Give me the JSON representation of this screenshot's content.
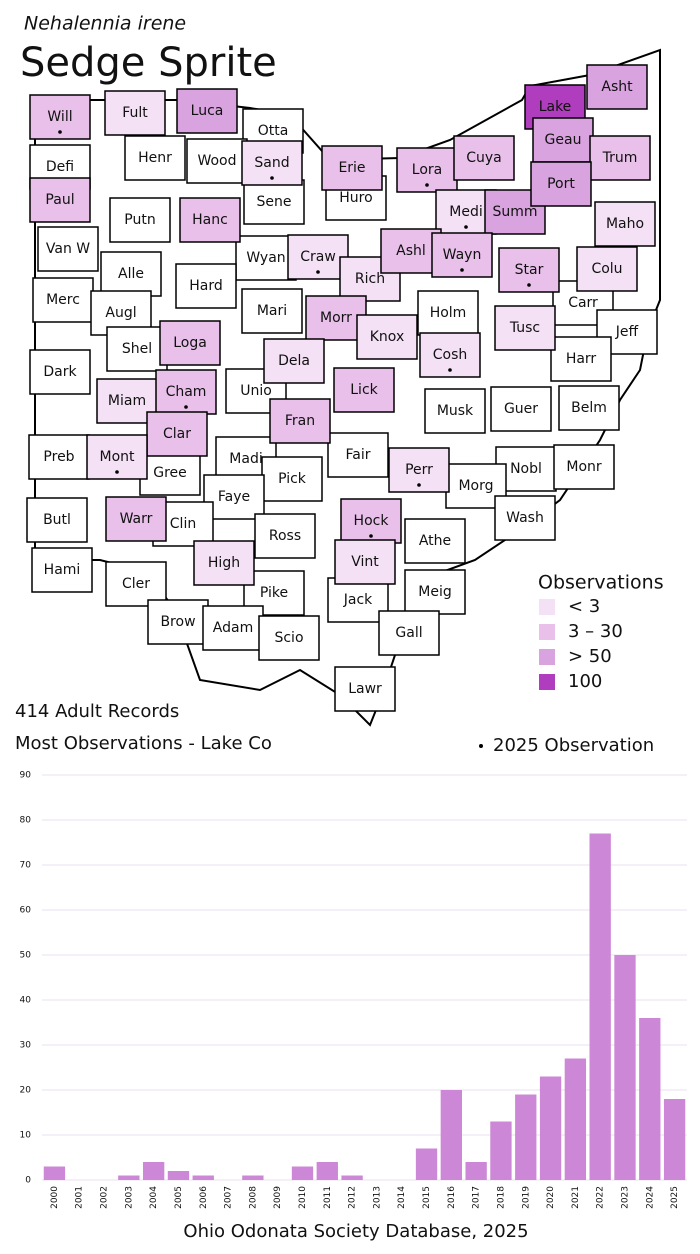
{
  "header": {
    "species": "Nehalennia irene",
    "title": "Sedge Sprite"
  },
  "map": {
    "counties": [
      {
        "name": "Will",
        "level": 1,
        "dot": true
      },
      {
        "name": "Fult",
        "level": 0,
        "dot": false
      },
      {
        "name": "Luca",
        "level": 2,
        "dot": false
      },
      {
        "name": "Otta",
        "level": null,
        "dot": false
      },
      {
        "name": "Lake",
        "level": 3,
        "dot": false
      },
      {
        "name": "Asht",
        "level": 2,
        "dot": false
      },
      {
        "name": "Defi",
        "level": null,
        "dot": false
      },
      {
        "name": "Henr",
        "level": null,
        "dot": false
      },
      {
        "name": "Wood",
        "level": null,
        "dot": false
      },
      {
        "name": "Sand",
        "level": 0,
        "dot": true
      },
      {
        "name": "Erie",
        "level": 1,
        "dot": false
      },
      {
        "name": "Lora",
        "level": 1,
        "dot": true
      },
      {
        "name": "Cuya",
        "level": 1,
        "dot": false
      },
      {
        "name": "Geau",
        "level": 2,
        "dot": false
      },
      {
        "name": "Trum",
        "level": 1,
        "dot": false
      },
      {
        "name": "Paul",
        "level": 1,
        "dot": false
      },
      {
        "name": "Putn",
        "level": null,
        "dot": false
      },
      {
        "name": "Hanc",
        "level": 1,
        "dot": false
      },
      {
        "name": "Sene",
        "level": null,
        "dot": false
      },
      {
        "name": "Huro",
        "level": null,
        "dot": false
      },
      {
        "name": "Medi",
        "level": 0,
        "dot": true
      },
      {
        "name": "Summ",
        "level": 2,
        "dot": false
      },
      {
        "name": "Port",
        "level": 2,
        "dot": false
      },
      {
        "name": "Maho",
        "level": 0,
        "dot": false
      },
      {
        "name": "Van W",
        "level": null,
        "dot": false
      },
      {
        "name": "Alle",
        "level": null,
        "dot": false
      },
      {
        "name": "Wyan",
        "level": null,
        "dot": false
      },
      {
        "name": "Craw",
        "level": 0,
        "dot": true
      },
      {
        "name": "Rich",
        "level": 0,
        "dot": false
      },
      {
        "name": "Ashl",
        "level": 1,
        "dot": false
      },
      {
        "name": "Wayn",
        "level": 1,
        "dot": true
      },
      {
        "name": "Star",
        "level": 1,
        "dot": true
      },
      {
        "name": "Colu",
        "level": 0,
        "dot": false
      },
      {
        "name": "Merc",
        "level": null,
        "dot": false
      },
      {
        "name": "Augl",
        "level": null,
        "dot": false
      },
      {
        "name": "Hard",
        "level": null,
        "dot": false
      },
      {
        "name": "Mari",
        "level": null,
        "dot": false
      },
      {
        "name": "Morr",
        "level": 1,
        "dot": false
      },
      {
        "name": "Holm",
        "level": null,
        "dot": false
      },
      {
        "name": "Carr",
        "level": null,
        "dot": false
      },
      {
        "name": "Jeff",
        "level": null,
        "dot": false
      },
      {
        "name": "Shel",
        "level": null,
        "dot": false
      },
      {
        "name": "Loga",
        "level": 1,
        "dot": false
      },
      {
        "name": "Knox",
        "level": 0,
        "dot": false
      },
      {
        "name": "Tusc",
        "level": 0,
        "dot": false
      },
      {
        "name": "Dark",
        "level": null,
        "dot": false
      },
      {
        "name": "Dela",
        "level": 0,
        "dot": false
      },
      {
        "name": "Cosh",
        "level": 0,
        "dot": true
      },
      {
        "name": "Harr",
        "level": null,
        "dot": false
      },
      {
        "name": "Miam",
        "level": 0,
        "dot": false
      },
      {
        "name": "Cham",
        "level": 1,
        "dot": true
      },
      {
        "name": "Unio",
        "level": null,
        "dot": false
      },
      {
        "name": "Lick",
        "level": 1,
        "dot": false
      },
      {
        "name": "Musk",
        "level": null,
        "dot": false
      },
      {
        "name": "Guer",
        "level": null,
        "dot": false
      },
      {
        "name": "Belm",
        "level": null,
        "dot": false
      },
      {
        "name": "Clar",
        "level": 1,
        "dot": false
      },
      {
        "name": "Fran",
        "level": 1,
        "dot": false
      },
      {
        "name": "Preb",
        "level": null,
        "dot": false
      },
      {
        "name": "Mont",
        "level": 0,
        "dot": true
      },
      {
        "name": "Gree",
        "level": null,
        "dot": false
      },
      {
        "name": "Madi",
        "level": null,
        "dot": false
      },
      {
        "name": "Fair",
        "level": null,
        "dot": false
      },
      {
        "name": "Perr",
        "level": 0,
        "dot": true
      },
      {
        "name": "Nobl",
        "level": null,
        "dot": false
      },
      {
        "name": "Monr",
        "level": null,
        "dot": false
      },
      {
        "name": "Pick",
        "level": null,
        "dot": false
      },
      {
        "name": "Faye",
        "level": null,
        "dot": false
      },
      {
        "name": "Morg",
        "level": null,
        "dot": false
      },
      {
        "name": "Butl",
        "level": null,
        "dot": false
      },
      {
        "name": "Warr",
        "level": 1,
        "dot": false
      },
      {
        "name": "Clin",
        "level": null,
        "dot": false
      },
      {
        "name": "Ross",
        "level": null,
        "dot": false
      },
      {
        "name": "Hock",
        "level": 1,
        "dot": true
      },
      {
        "name": "Wash",
        "level": null,
        "dot": false
      },
      {
        "name": "Athe",
        "level": null,
        "dot": false
      },
      {
        "name": "Hami",
        "level": null,
        "dot": false
      },
      {
        "name": "Cler",
        "level": null,
        "dot": false
      },
      {
        "name": "High",
        "level": 0,
        "dot": false
      },
      {
        "name": "Vint",
        "level": 0,
        "dot": false
      },
      {
        "name": "Pike",
        "level": null,
        "dot": false
      },
      {
        "name": "Jack",
        "level": null,
        "dot": false
      },
      {
        "name": "Meig",
        "level": null,
        "dot": false
      },
      {
        "name": "Brow",
        "level": null,
        "dot": false
      },
      {
        "name": "Adam",
        "level": null,
        "dot": false
      },
      {
        "name": "Scio",
        "level": null,
        "dot": false
      },
      {
        "name": "Gall",
        "level": null,
        "dot": false
      },
      {
        "name": "Lawr",
        "level": null,
        "dot": false
      }
    ],
    "legend": {
      "title": "Observations",
      "items": [
        {
          "label": "< 3",
          "color": "#f5e1f5"
        },
        {
          "label": "3 – 30",
          "color": "#e8c0ea"
        },
        {
          "label": "> 50",
          "color": "#d9a3df"
        },
        {
          "label": "100",
          "color": "#b03dbd"
        }
      ]
    },
    "dot_legend": "2025 Observation"
  },
  "records": "414 Adult Records",
  "most": "Most Observations - Lake Co",
  "chart_data": {
    "type": "bar",
    "categories": [
      "2000",
      "2001",
      "2002",
      "2003",
      "2004",
      "2005",
      "2006",
      "2007",
      "2008",
      "2009",
      "2010",
      "2011",
      "2012",
      "2013",
      "2014",
      "2015",
      "2016",
      "2017",
      "2018",
      "2019",
      "2020",
      "2021",
      "2022",
      "2023",
      "2024",
      "2025"
    ],
    "values": [
      3,
      0,
      0,
      1,
      4,
      2,
      1,
      0,
      1,
      0,
      3,
      4,
      1,
      0,
      0,
      7,
      20,
      4,
      13,
      19,
      23,
      27,
      77,
      50,
      36,
      18
    ],
    "color": "#cc88d6",
    "ylim": [
      0,
      90
    ],
    "yticks": [
      0,
      10,
      20,
      30,
      40,
      50,
      60,
      70,
      80,
      90
    ],
    "grid": true
  },
  "footer": "Ohio Odonata Society Database, 2025"
}
